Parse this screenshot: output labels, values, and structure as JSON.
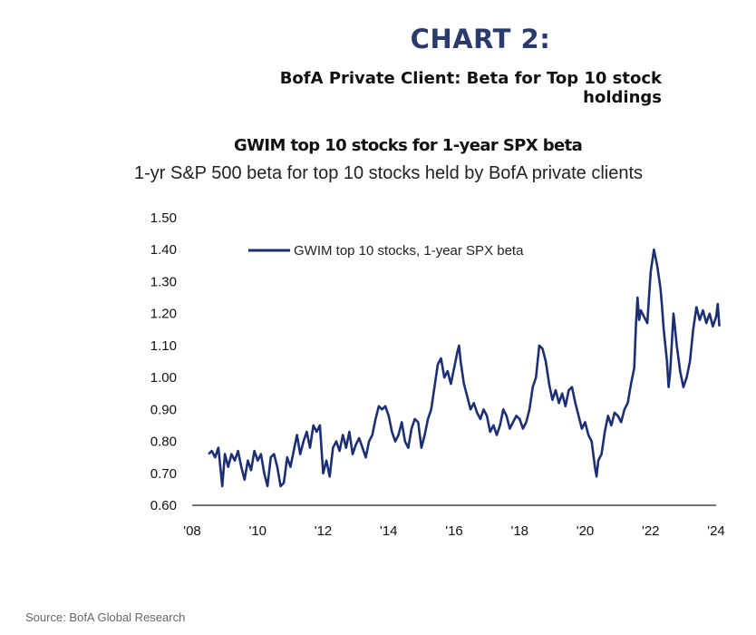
{
  "header": {
    "heading": "CHART 2:",
    "subheading": "BofA Private Client: Beta for Top 10 stock holdings"
  },
  "footer": {
    "source": "Source: BofA Global Research"
  },
  "colors": {
    "heading": "#2a3b6b",
    "series": "#1c2f74",
    "axis": "#222222"
  },
  "chart_data": {
    "type": "line",
    "title": "GWIM top 10 stocks for 1-year SPX beta",
    "subtitle": "1-yr S&P 500 beta for top 10 stocks held by BofA private clients",
    "xlabel": "",
    "ylabel": "",
    "x_tick_labels": [
      "'08",
      "'10",
      "'12",
      "'14",
      "'16",
      "'18",
      "'20",
      "'22",
      "'24"
    ],
    "y_tick_labels": [
      "0.60",
      "0.70",
      "0.80",
      "0.90",
      "1.00",
      "1.10",
      "1.20",
      "1.30",
      "1.40",
      "1.50"
    ],
    "ylim": [
      0.6,
      1.5
    ],
    "xlim": [
      2008,
      2024
    ],
    "grid": false,
    "legend_position": "top-left",
    "series": [
      {
        "name": "GWIM top 10 stocks, 1-year SPX beta",
        "points": [
          [
            2008.5,
            0.76
          ],
          [
            2008.6,
            0.77
          ],
          [
            2008.7,
            0.75
          ],
          [
            2008.8,
            0.78
          ],
          [
            2008.88,
            0.7
          ],
          [
            2008.92,
            0.66
          ],
          [
            2009.0,
            0.76
          ],
          [
            2009.1,
            0.72
          ],
          [
            2009.2,
            0.76
          ],
          [
            2009.3,
            0.74
          ],
          [
            2009.4,
            0.77
          ],
          [
            2009.5,
            0.72
          ],
          [
            2009.6,
            0.68
          ],
          [
            2009.7,
            0.74
          ],
          [
            2009.8,
            0.71
          ],
          [
            2009.9,
            0.77
          ],
          [
            2010.0,
            0.74
          ],
          [
            2010.1,
            0.76
          ],
          [
            2010.2,
            0.7
          ],
          [
            2010.3,
            0.66
          ],
          [
            2010.4,
            0.75
          ],
          [
            2010.5,
            0.76
          ],
          [
            2010.6,
            0.72
          ],
          [
            2010.7,
            0.66
          ],
          [
            2010.8,
            0.67
          ],
          [
            2010.9,
            0.75
          ],
          [
            2011.0,
            0.72
          ],
          [
            2011.1,
            0.77
          ],
          [
            2011.2,
            0.82
          ],
          [
            2011.3,
            0.76
          ],
          [
            2011.4,
            0.8
          ],
          [
            2011.5,
            0.83
          ],
          [
            2011.6,
            0.78
          ],
          [
            2011.7,
            0.85
          ],
          [
            2011.8,
            0.83
          ],
          [
            2011.9,
            0.85
          ],
          [
            2012.0,
            0.7
          ],
          [
            2012.1,
            0.74
          ],
          [
            2012.2,
            0.69
          ],
          [
            2012.3,
            0.78
          ],
          [
            2012.4,
            0.8
          ],
          [
            2012.5,
            0.77
          ],
          [
            2012.6,
            0.82
          ],
          [
            2012.7,
            0.78
          ],
          [
            2012.8,
            0.83
          ],
          [
            2012.9,
            0.76
          ],
          [
            2013.0,
            0.79
          ],
          [
            2013.1,
            0.81
          ],
          [
            2013.2,
            0.78
          ],
          [
            2013.3,
            0.75
          ],
          [
            2013.4,
            0.8
          ],
          [
            2013.5,
            0.82
          ],
          [
            2013.6,
            0.87
          ],
          [
            2013.7,
            0.91
          ],
          [
            2013.8,
            0.9
          ],
          [
            2013.9,
            0.91
          ],
          [
            2014.0,
            0.88
          ],
          [
            2014.1,
            0.83
          ],
          [
            2014.2,
            0.8
          ],
          [
            2014.3,
            0.82
          ],
          [
            2014.4,
            0.86
          ],
          [
            2014.5,
            0.8
          ],
          [
            2014.6,
            0.78
          ],
          [
            2014.7,
            0.84
          ],
          [
            2014.8,
            0.87
          ],
          [
            2014.9,
            0.86
          ],
          [
            2015.0,
            0.78
          ],
          [
            2015.1,
            0.82
          ],
          [
            2015.2,
            0.87
          ],
          [
            2015.3,
            0.9
          ],
          [
            2015.4,
            0.97
          ],
          [
            2015.5,
            1.04
          ],
          [
            2015.6,
            1.06
          ],
          [
            2015.7,
            1.0
          ],
          [
            2015.8,
            1.02
          ],
          [
            2015.9,
            0.98
          ],
          [
            2016.0,
            1.03
          ],
          [
            2016.1,
            1.08
          ],
          [
            2016.15,
            1.1
          ],
          [
            2016.2,
            1.05
          ],
          [
            2016.3,
            0.98
          ],
          [
            2016.4,
            0.94
          ],
          [
            2016.5,
            0.9
          ],
          [
            2016.6,
            0.92
          ],
          [
            2016.7,
            0.89
          ],
          [
            2016.8,
            0.87
          ],
          [
            2016.9,
            0.9
          ],
          [
            2017.0,
            0.88
          ],
          [
            2017.1,
            0.83
          ],
          [
            2017.2,
            0.85
          ],
          [
            2017.3,
            0.82
          ],
          [
            2017.4,
            0.85
          ],
          [
            2017.5,
            0.9
          ],
          [
            2017.6,
            0.88
          ],
          [
            2017.7,
            0.84
          ],
          [
            2017.8,
            0.86
          ],
          [
            2017.9,
            0.88
          ],
          [
            2018.0,
            0.87
          ],
          [
            2018.1,
            0.84
          ],
          [
            2018.2,
            0.86
          ],
          [
            2018.3,
            0.9
          ],
          [
            2018.4,
            0.97
          ],
          [
            2018.5,
            1.0
          ],
          [
            2018.6,
            1.1
          ],
          [
            2018.7,
            1.09
          ],
          [
            2018.8,
            1.05
          ],
          [
            2018.9,
            0.98
          ],
          [
            2019.0,
            0.93
          ],
          [
            2019.1,
            0.96
          ],
          [
            2019.2,
            0.92
          ],
          [
            2019.3,
            0.95
          ],
          [
            2019.4,
            0.91
          ],
          [
            2019.5,
            0.96
          ],
          [
            2019.6,
            0.97
          ],
          [
            2019.7,
            0.92
          ],
          [
            2019.8,
            0.88
          ],
          [
            2019.9,
            0.84
          ],
          [
            2020.0,
            0.86
          ],
          [
            2020.1,
            0.82
          ],
          [
            2020.2,
            0.8
          ],
          [
            2020.3,
            0.72
          ],
          [
            2020.35,
            0.69
          ],
          [
            2020.4,
            0.74
          ],
          [
            2020.5,
            0.76
          ],
          [
            2020.6,
            0.83
          ],
          [
            2020.7,
            0.88
          ],
          [
            2020.8,
            0.85
          ],
          [
            2020.9,
            0.89
          ],
          [
            2021.0,
            0.88
          ],
          [
            2021.1,
            0.86
          ],
          [
            2021.2,
            0.9
          ],
          [
            2021.3,
            0.92
          ],
          [
            2021.4,
            0.98
          ],
          [
            2021.5,
            1.03
          ],
          [
            2021.55,
            1.16
          ],
          [
            2021.6,
            1.25
          ],
          [
            2021.65,
            1.18
          ],
          [
            2021.7,
            1.21
          ],
          [
            2021.8,
            1.19
          ],
          [
            2021.9,
            1.17
          ],
          [
            2022.0,
            1.33
          ],
          [
            2022.1,
            1.4
          ],
          [
            2022.2,
            1.35
          ],
          [
            2022.3,
            1.28
          ],
          [
            2022.35,
            1.22
          ],
          [
            2022.4,
            1.15
          ],
          [
            2022.5,
            1.05
          ],
          [
            2022.55,
            0.97
          ],
          [
            2022.6,
            1.02
          ],
          [
            2022.7,
            1.2
          ],
          [
            2022.8,
            1.1
          ],
          [
            2022.9,
            1.02
          ],
          [
            2023.0,
            0.97
          ],
          [
            2023.1,
            1.0
          ],
          [
            2023.2,
            1.05
          ],
          [
            2023.3,
            1.15
          ],
          [
            2023.4,
            1.22
          ],
          [
            2023.5,
            1.18
          ],
          [
            2023.6,
            1.21
          ],
          [
            2023.7,
            1.17
          ],
          [
            2023.8,
            1.2
          ],
          [
            2023.9,
            1.16
          ],
          [
            2024.0,
            1.19
          ],
          [
            2024.05,
            1.23
          ],
          [
            2024.1,
            1.16
          ]
        ]
      }
    ]
  }
}
